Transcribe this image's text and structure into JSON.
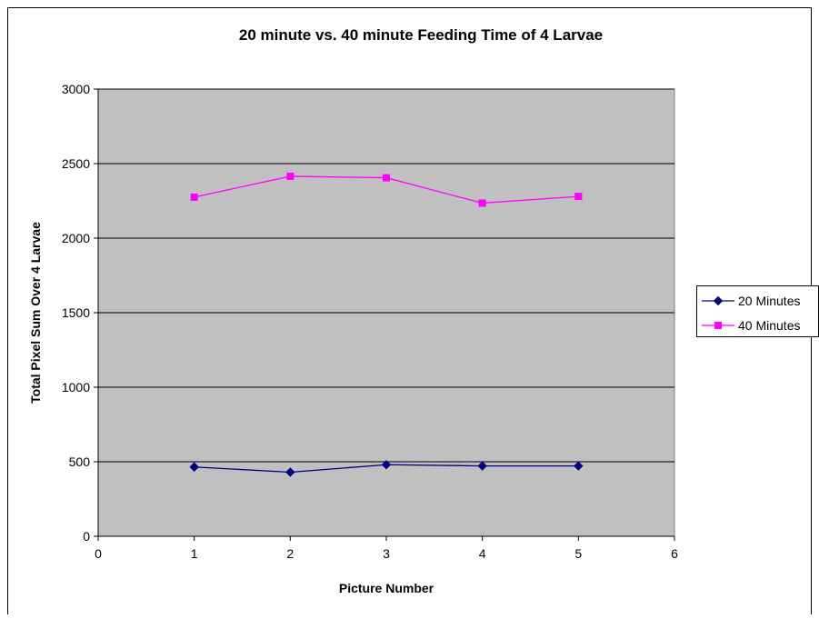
{
  "chart_data": {
    "type": "line",
    "title": "20 minute vs. 40 minute Feeding Time of 4 Larvae",
    "xlabel": "Picture Number",
    "ylabel": "Total Pixel Sum Over 4 Larvae",
    "xlim": [
      0,
      6
    ],
    "ylim": [
      0,
      3000
    ],
    "x_ticks": [
      "0",
      "1",
      "2",
      "3",
      "4",
      "5",
      "6"
    ],
    "y_ticks": [
      "0",
      "500",
      "1000",
      "1500",
      "2000",
      "2500",
      "3000"
    ],
    "grid": "horizontal",
    "legend_position": "right",
    "plot_background": "#C0C0C0",
    "series": [
      {
        "name": "20 Minutes",
        "color": "#000080",
        "marker": "diamond",
        "x": [
          1,
          2,
          3,
          4,
          5
        ],
        "values": [
          465,
          430,
          480,
          472,
          472
        ]
      },
      {
        "name": "40 Minutes",
        "color": "#FF00FF",
        "marker": "square",
        "x": [
          1,
          2,
          3,
          4,
          5
        ],
        "values": [
          2275,
          2415,
          2405,
          2235,
          2280
        ]
      }
    ]
  }
}
